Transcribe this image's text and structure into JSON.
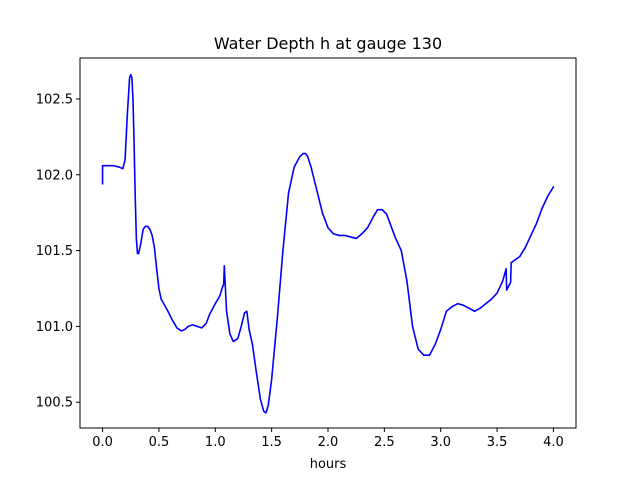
{
  "chart_data": {
    "type": "line",
    "title": "Water Depth h at gauge 130",
    "xlabel": "hours",
    "ylabel": "",
    "xlim": [
      -0.2,
      4.2
    ],
    "ylim": [
      100.33,
      102.77
    ],
    "xticks": [
      0.0,
      0.5,
      1.0,
      1.5,
      2.0,
      2.5,
      3.0,
      3.5,
      4.0
    ],
    "xtick_labels": [
      "0.0",
      "0.5",
      "1.0",
      "1.5",
      "2.0",
      "2.5",
      "3.0",
      "3.5",
      "4.0"
    ],
    "yticks": [
      100.5,
      101.0,
      101.5,
      102.0,
      102.5
    ],
    "ytick_labels": [
      "100.5",
      "101.0",
      "101.5",
      "102.0",
      "102.5"
    ],
    "grid": false,
    "series": [
      {
        "color": "#0000ff",
        "x": [
          0.0,
          0.0,
          0.05,
          0.1,
          0.15,
          0.18,
          0.2,
          0.22,
          0.24,
          0.25,
          0.26,
          0.27,
          0.28,
          0.29,
          0.3,
          0.31,
          0.32,
          0.34,
          0.36,
          0.38,
          0.4,
          0.42,
          0.44,
          0.46,
          0.48,
          0.5,
          0.52,
          0.55,
          0.58,
          0.62,
          0.66,
          0.7,
          0.73,
          0.76,
          0.8,
          0.84,
          0.88,
          0.92,
          0.95,
          1.0,
          1.04,
          1.06,
          1.07,
          1.075,
          1.08,
          1.1,
          1.13,
          1.16,
          1.2,
          1.23,
          1.26,
          1.28,
          1.3,
          1.33,
          1.36,
          1.4,
          1.43,
          1.45,
          1.47,
          1.5,
          1.55,
          1.6,
          1.65,
          1.7,
          1.75,
          1.78,
          1.8,
          1.82,
          1.85,
          1.9,
          1.95,
          2.0,
          2.05,
          2.1,
          2.15,
          2.2,
          2.25,
          2.3,
          2.35,
          2.4,
          2.44,
          2.48,
          2.52,
          2.55,
          2.6,
          2.65,
          2.7,
          2.75,
          2.8,
          2.85,
          2.9,
          2.95,
          3.0,
          3.05,
          3.1,
          3.15,
          3.2,
          3.25,
          3.3,
          3.35,
          3.4,
          3.45,
          3.5,
          3.55,
          3.58,
          3.585,
          3.62,
          3.625,
          3.7,
          3.75,
          3.8,
          3.85,
          3.9,
          3.95,
          4.0
        ],
        "y": [
          101.94,
          102.06,
          102.06,
          102.06,
          102.05,
          102.04,
          102.1,
          102.4,
          102.64,
          102.66,
          102.64,
          102.5,
          102.2,
          101.85,
          101.58,
          101.48,
          101.48,
          101.55,
          101.64,
          101.66,
          101.66,
          101.64,
          101.6,
          101.52,
          101.38,
          101.25,
          101.18,
          101.14,
          101.1,
          101.04,
          100.99,
          100.97,
          100.98,
          101.0,
          101.01,
          101.0,
          100.99,
          101.02,
          101.08,
          101.15,
          101.2,
          101.25,
          101.27,
          101.28,
          101.4,
          101.1,
          100.95,
          100.9,
          100.92,
          101.0,
          101.09,
          101.1,
          100.98,
          100.88,
          100.72,
          100.52,
          100.44,
          100.43,
          100.48,
          100.65,
          101.05,
          101.5,
          101.88,
          102.05,
          102.12,
          102.14,
          102.14,
          102.12,
          102.05,
          101.9,
          101.75,
          101.65,
          101.61,
          101.6,
          101.6,
          101.59,
          101.58,
          101.61,
          101.65,
          101.72,
          101.77,
          101.77,
          101.74,
          101.68,
          101.58,
          101.5,
          101.3,
          101.0,
          100.85,
          100.81,
          100.81,
          100.88,
          100.98,
          101.1,
          101.13,
          101.15,
          101.14,
          101.12,
          101.1,
          101.12,
          101.15,
          101.18,
          101.22,
          101.3,
          101.38,
          101.24,
          101.29,
          101.42,
          101.46,
          101.52,
          101.6,
          101.68,
          101.78,
          101.86,
          101.92
        ]
      }
    ]
  }
}
